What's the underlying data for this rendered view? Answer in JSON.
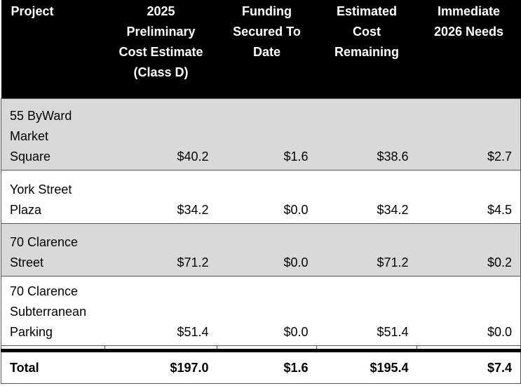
{
  "table": {
    "columns": [
      "Project",
      "2025 Preliminary Cost Estimate (Class D)",
      "Funding Secured To Date",
      "Estimated Cost Remaining",
      "Immediate 2026 Needs"
    ],
    "rows": [
      [
        "55 ByWard Market Square",
        "$40.2",
        "$1.6",
        "$38.6",
        "$2.7"
      ],
      [
        "York Street Plaza",
        "$34.2",
        "$0.0",
        "$34.2",
        "$4.5"
      ],
      [
        "70 Clarence Street",
        "$71.2",
        "$0.0",
        "$71.2",
        "$0.2"
      ],
      [
        "70 Clarence Subterranean Parking",
        "$51.4",
        "$0.0",
        "$51.4",
        "$0.0"
      ]
    ],
    "total": [
      "Total",
      "$197.0",
      "$1.6",
      "$195.4",
      "$7.4"
    ]
  }
}
